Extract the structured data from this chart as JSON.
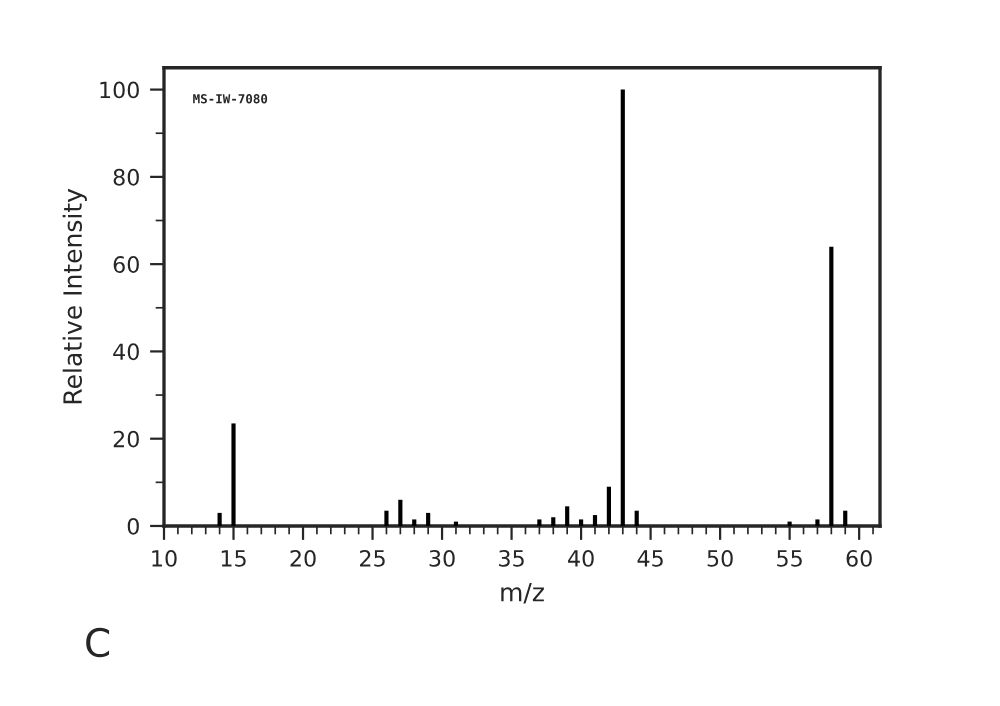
{
  "chart_data": {
    "type": "bar",
    "xlabel": "m/z",
    "ylabel": "Relative Intensity",
    "x": [
      14,
      15,
      26,
      27,
      28,
      29,
      31,
      37,
      38,
      39,
      40,
      41,
      42,
      43,
      44,
      55,
      57,
      58,
      59
    ],
    "values": [
      3,
      23.5,
      3.5,
      6,
      1.5,
      3,
      1,
      1.5,
      2,
      4.5,
      1.5,
      2.5,
      9,
      100,
      3.5,
      1,
      1.5,
      64,
      3.5
    ],
    "color": "#000000",
    "xlim": [
      10,
      61.5
    ],
    "ylim": [
      0,
      105
    ],
    "xticks": [
      10,
      {
        "value": 11,
        "label": null
      },
      {
        "value": 12,
        "label": null
      },
      {
        "value": 13,
        "label": null
      },
      {
        "value": 14,
        "label": null
      },
      15,
      {
        "value": 16,
        "label": null
      },
      {
        "value": 17,
        "label": null
      },
      {
        "value": 18,
        "label": null
      },
      {
        "value": 19,
        "label": null
      },
      20,
      {
        "value": 21,
        "label": null
      },
      {
        "value": 22,
        "label": null
      },
      {
        "value": 23,
        "label": null
      },
      {
        "value": 24,
        "label": null
      },
      25,
      {
        "value": 26,
        "label": null
      },
      {
        "value": 27,
        "label": null
      },
      {
        "value": 28,
        "label": null
      },
      {
        "value": 29,
        "label": null
      },
      30,
      {
        "value": 31,
        "label": null
      },
      {
        "value": 32,
        "label": null
      },
      {
        "value": 33,
        "label": null
      },
      {
        "value": 34,
        "label": null
      },
      35,
      {
        "value": 36,
        "label": null
      },
      {
        "value": 37,
        "label": null
      },
      {
        "value": 38,
        "label": null
      },
      {
        "value": 39,
        "label": null
      },
      40,
      {
        "value": 41,
        "label": null
      },
      {
        "value": 42,
        "label": null
      },
      {
        "value": 43,
        "label": null
      },
      {
        "value": 44,
        "label": null
      },
      45,
      {
        "value": 46,
        "label": null
      },
      {
        "value": 47,
        "label": null
      },
      {
        "value": 48,
        "label": null
      },
      {
        "value": 49,
        "label": null
      },
      50,
      {
        "value": 51,
        "label": null
      },
      {
        "value": 52,
        "label": null
      },
      {
        "value": 53,
        "label": null
      },
      {
        "value": 54,
        "label": null
      },
      55,
      {
        "value": 56,
        "label": null
      },
      {
        "value": 57,
        "label": null
      },
      {
        "value": 58,
        "label": null
      },
      {
        "value": 59,
        "label": null
      },
      60,
      {
        "value": 61,
        "label": null
      }
    ],
    "yticks": [
      0,
      {
        "value": 10,
        "label": null
      },
      20,
      {
        "value": 30,
        "label": null
      },
      40,
      {
        "value": 50,
        "label": null
      },
      60,
      {
        "value": 70,
        "label": null
      },
      80,
      {
        "value": 90,
        "label": null
      },
      100
    ],
    "grid": false,
    "annotations": [
      "MS-IW-7080",
      "C"
    ]
  }
}
